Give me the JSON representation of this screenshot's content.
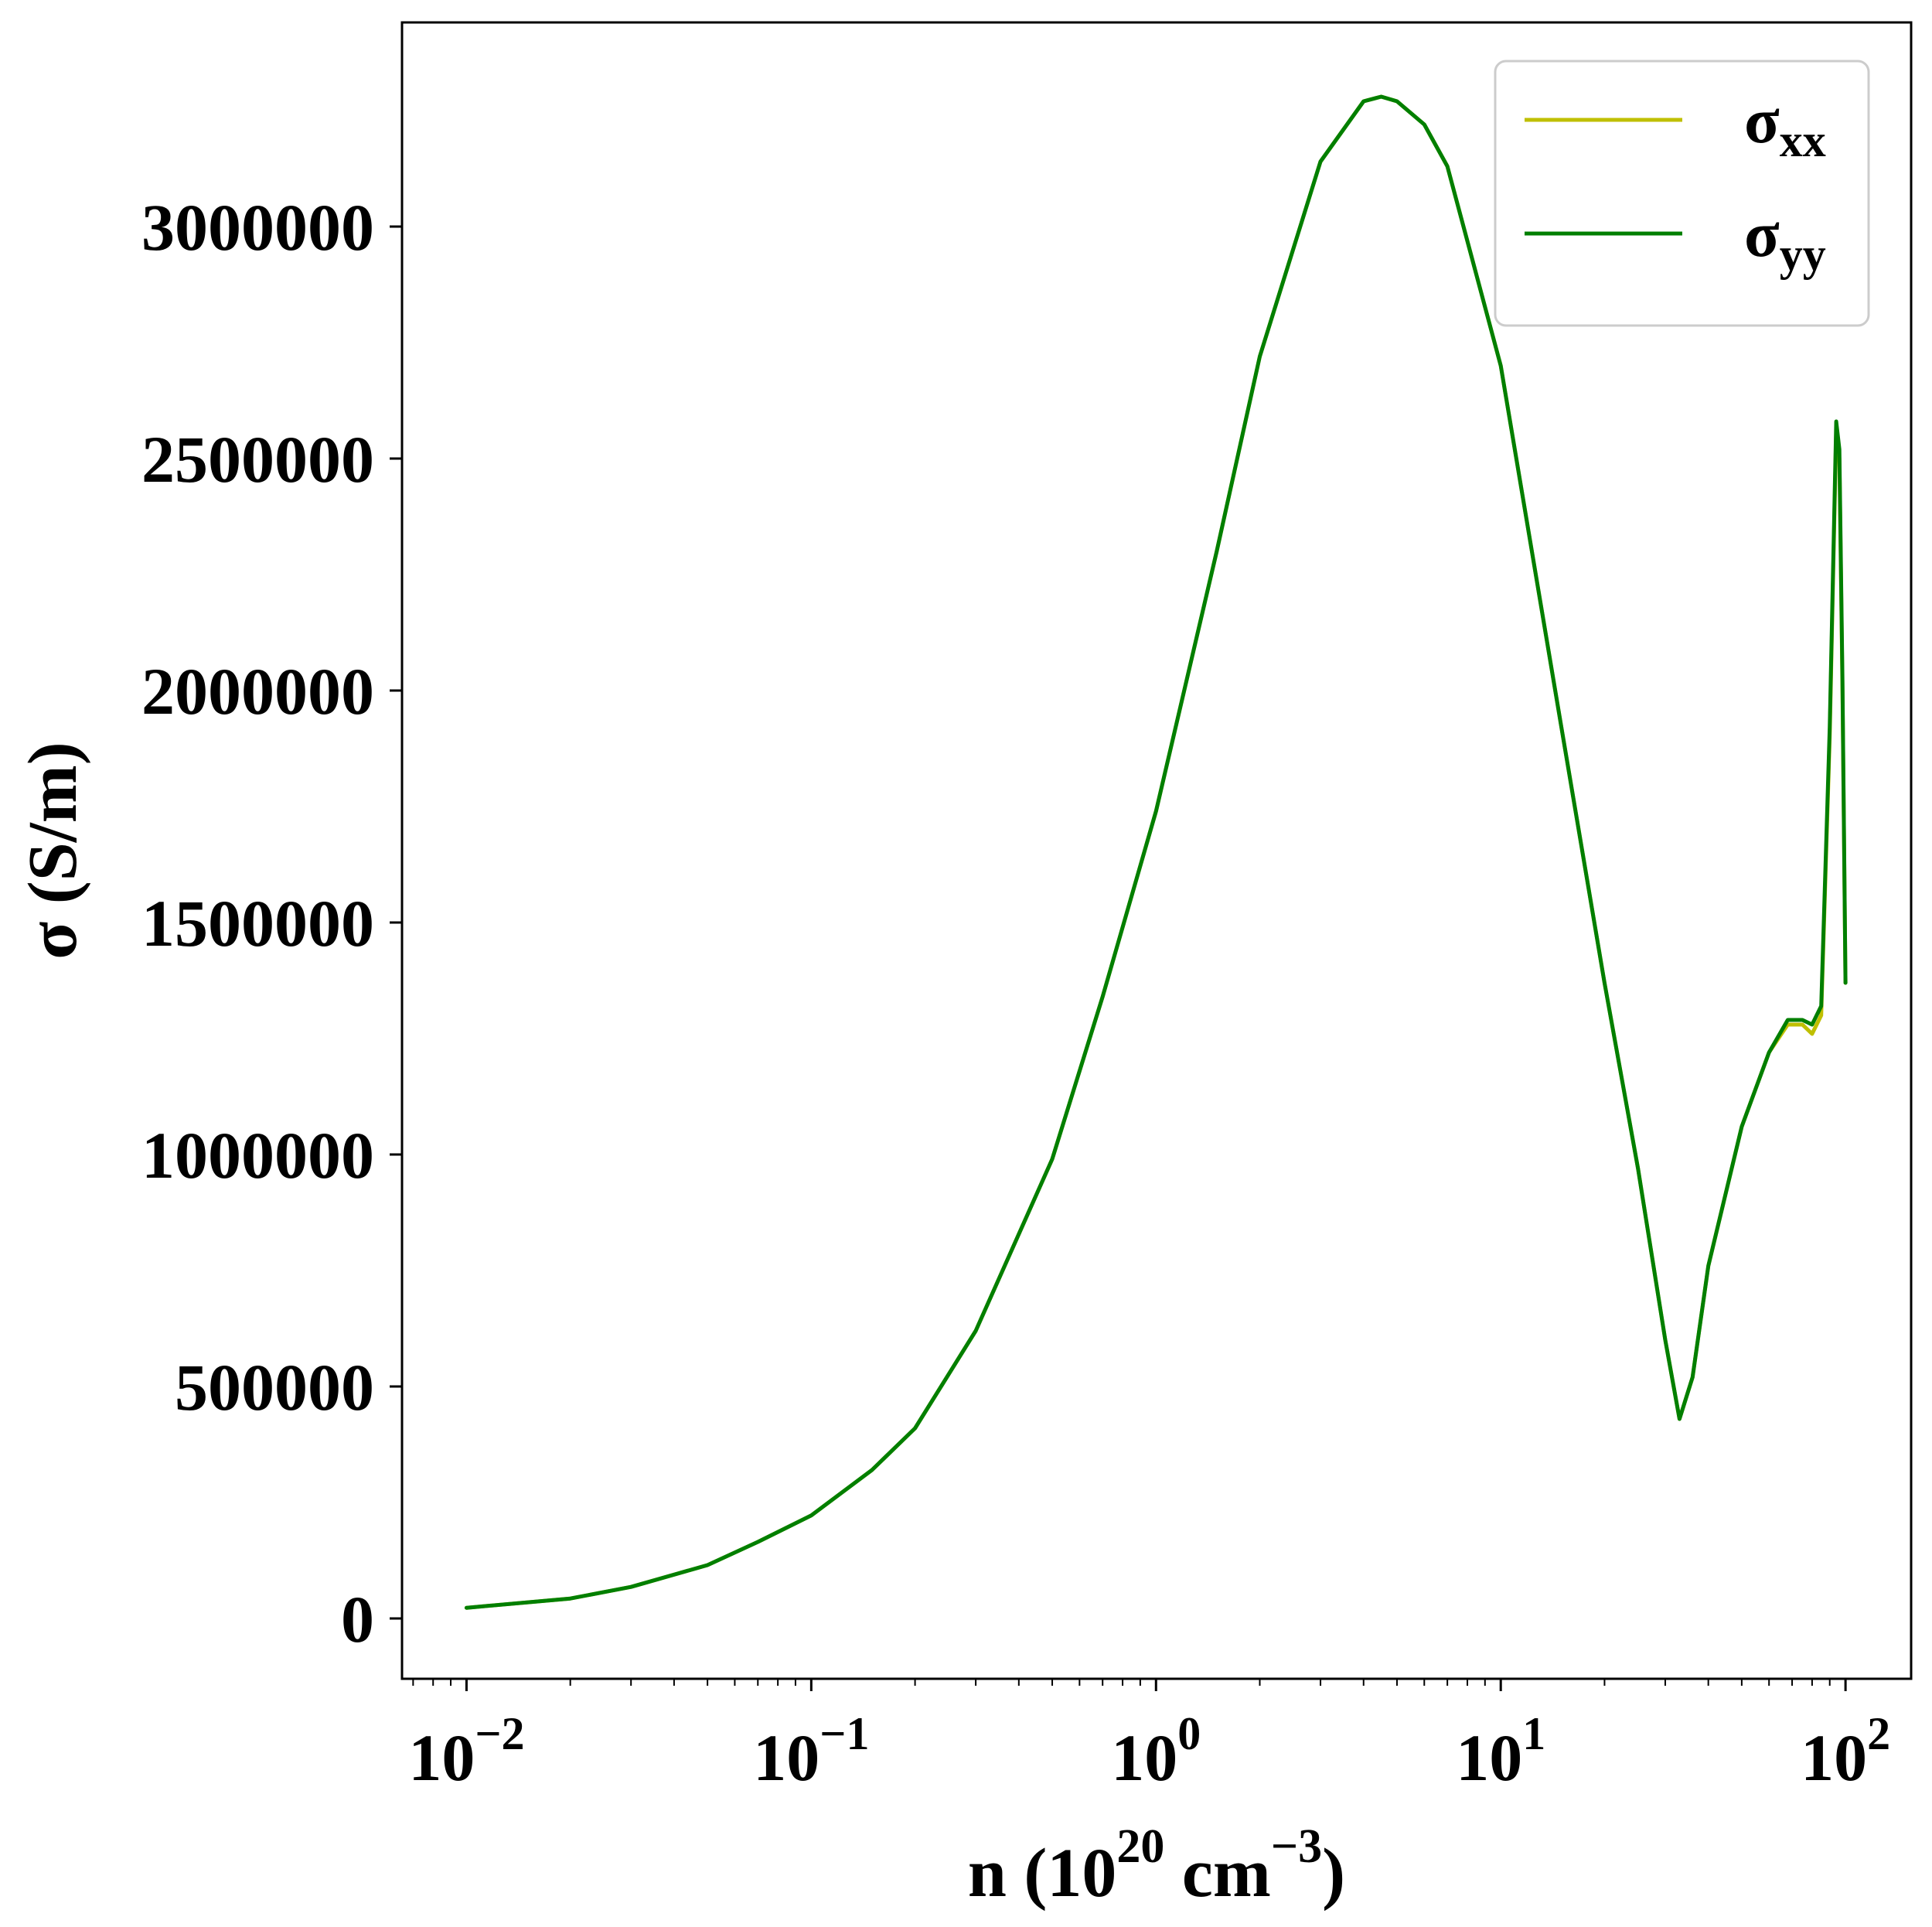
{
  "chart_data": {
    "type": "line",
    "xscale": "log",
    "xlim": [
      0.0065,
      155
    ],
    "ylim": [
      -130000,
      3440000
    ],
    "x_ticks": [
      {
        "value": 0.01,
        "base": "10",
        "exp": "−2"
      },
      {
        "value": 0.1,
        "base": "10",
        "exp": "−1"
      },
      {
        "value": 1,
        "base": "10",
        "exp": "0"
      },
      {
        "value": 10,
        "base": "10",
        "exp": "1"
      },
      {
        "value": 100,
        "base": "10",
        "exp": "2"
      }
    ],
    "y_ticks": [
      {
        "value": 0,
        "label": "0"
      },
      {
        "value": 500000,
        "label": "500000"
      },
      {
        "value": 1000000,
        "label": "1000000"
      },
      {
        "value": 1500000,
        "label": "1500000"
      },
      {
        "value": 2000000,
        "label": "2000000"
      },
      {
        "value": 2500000,
        "label": "2500000"
      },
      {
        "value": 3000000,
        "label": "3000000"
      }
    ],
    "xlabel": {
      "prefix": "n (10",
      "sup1": "20",
      "mid": " cm",
      "sup2": "−3",
      "suffix": ")"
    },
    "ylabel": "σ (S/m)",
    "grid": false,
    "legend_position": "top-right",
    "series": [
      {
        "name": "σxx",
        "name_main": "σ",
        "name_sub": "xx",
        "color": "#bfbf00",
        "points": [
          [
            0.01,
            23000
          ],
          [
            0.02,
            43000
          ],
          [
            0.03,
            68000
          ],
          [
            0.05,
            115000
          ],
          [
            0.07,
            165000
          ],
          [
            0.1,
            222000
          ],
          [
            0.15,
            320000
          ],
          [
            0.2,
            410000
          ],
          [
            0.3,
            620000
          ],
          [
            0.5,
            990000
          ],
          [
            0.7,
            1340000
          ],
          [
            1,
            1740000
          ],
          [
            1.5,
            2300000
          ],
          [
            2,
            2720000
          ],
          [
            3,
            3140000
          ],
          [
            4,
            3270000
          ],
          [
            4.5,
            3280000
          ],
          [
            5,
            3270000
          ],
          [
            6,
            3220000
          ],
          [
            7,
            3130000
          ],
          [
            10,
            2700000
          ],
          [
            15,
            1920000
          ],
          [
            20,
            1370000
          ],
          [
            25,
            970000
          ],
          [
            30,
            600000
          ],
          [
            33,
            430000
          ],
          [
            36,
            520000
          ],
          [
            40,
            760000
          ],
          [
            50,
            1060000
          ],
          [
            60,
            1220000
          ],
          [
            68,
            1280000
          ],
          [
            75,
            1280000
          ],
          [
            80,
            1260000
          ],
          [
            85,
            1300000
          ],
          [
            90,
            1900000
          ],
          [
            94,
            2560000
          ],
          [
            96,
            2500000
          ],
          [
            98,
            2000000
          ],
          [
            100,
            1370000
          ]
        ]
      },
      {
        "name": "σyy",
        "name_main": "σ",
        "name_sub": "yy",
        "color": "#007f00",
        "points": [
          [
            0.01,
            23000
          ],
          [
            0.02,
            43000
          ],
          [
            0.03,
            68000
          ],
          [
            0.05,
            115000
          ],
          [
            0.07,
            165000
          ],
          [
            0.1,
            222000
          ],
          [
            0.15,
            320000
          ],
          [
            0.2,
            410000
          ],
          [
            0.3,
            620000
          ],
          [
            0.5,
            990000
          ],
          [
            0.7,
            1340000
          ],
          [
            1,
            1740000
          ],
          [
            1.5,
            2300000
          ],
          [
            2,
            2720000
          ],
          [
            3,
            3140000
          ],
          [
            4,
            3270000
          ],
          [
            4.5,
            3280000
          ],
          [
            5,
            3270000
          ],
          [
            6,
            3220000
          ],
          [
            7,
            3130000
          ],
          [
            10,
            2700000
          ],
          [
            15,
            1920000
          ],
          [
            20,
            1370000
          ],
          [
            25,
            970000
          ],
          [
            30,
            600000
          ],
          [
            33,
            430000
          ],
          [
            36,
            520000
          ],
          [
            40,
            760000
          ],
          [
            50,
            1060000
          ],
          [
            60,
            1220000
          ],
          [
            68,
            1290000
          ],
          [
            75,
            1290000
          ],
          [
            80,
            1280000
          ],
          [
            85,
            1320000
          ],
          [
            90,
            1920000
          ],
          [
            94,
            2580000
          ],
          [
            96,
            2520000
          ],
          [
            98,
            2020000
          ],
          [
            100,
            1370000
          ]
        ]
      }
    ]
  }
}
